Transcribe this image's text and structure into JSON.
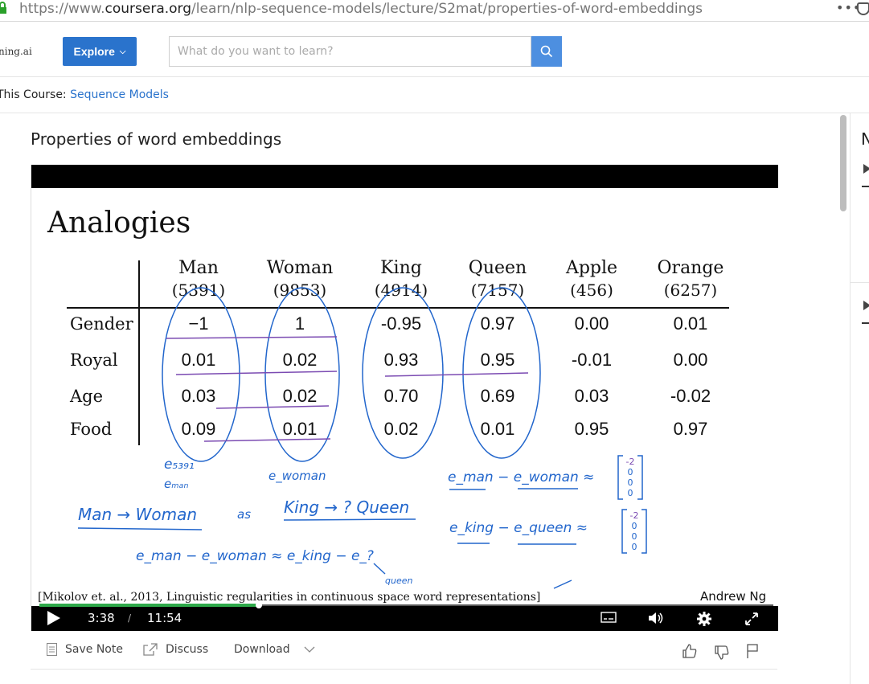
{
  "browser": {
    "url_prefix": "https://www.",
    "url_domain": "coursera.org",
    "url_path": "/learn/nlp-sequence-models/lecture/S2mat/properties-of-word-embeddings",
    "menu_icon": "ellipsis-icon"
  },
  "header": {
    "brand": "ning.ai",
    "explore_label": "Explore",
    "search_placeholder": "What do you want to learn?"
  },
  "course_bar": {
    "prefix": "This Course: ",
    "course_name": "Sequence Models"
  },
  "lecture": {
    "title": "Properties of word embeddings"
  },
  "slide": {
    "heading": "Analogies",
    "columns": [
      {
        "word": "Man",
        "index": "(5391)"
      },
      {
        "word": "Woman",
        "index": "(9853)"
      },
      {
        "word": "King",
        "index": "(4914)"
      },
      {
        "word": "Queen",
        "index": "(7157)"
      },
      {
        "word": "Apple",
        "index": "(456)"
      },
      {
        "word": "Orange",
        "index": "(6257)"
      }
    ],
    "rows": [
      {
        "feature": "Gender",
        "values": [
          "−1",
          "1",
          "-0.95",
          "0.97",
          "0.00",
          "0.01"
        ]
      },
      {
        "feature": "Royal",
        "values": [
          "0.01",
          "0.02",
          "0.93",
          "0.95",
          "-0.01",
          "0.00"
        ]
      },
      {
        "feature": "Age",
        "values": [
          "0.03",
          "0.02",
          "0.70",
          "0.69",
          "0.03",
          "-0.02"
        ]
      },
      {
        "feature": "Food",
        "values": [
          "0.09",
          "0.01",
          "0.02",
          "0.01",
          "0.95",
          "0.97"
        ]
      }
    ],
    "handwriting": {
      "e5391": "e₅₃₉₁",
      "eman": "eₘₐₙ",
      "ewoman": "e_woman",
      "analogy1": "Man → Woman",
      "as": "as",
      "analogy2": "King → ? Queen",
      "diff1": "e_man − e_woman ≈",
      "diff2": "e_king − e_queen ≈",
      "vec1": [
        "-2",
        "0",
        "0",
        "0"
      ],
      "vec2": [
        "-2",
        "0",
        "0",
        "0"
      ],
      "eq": "e_man − e_woman ≈ e_king − e_?",
      "queen_note": "queen"
    },
    "citation": "[Mikolov et. al., 2013, Linguistic regularities in continuous space word representations]",
    "author": "Andrew Ng"
  },
  "player": {
    "current_time": "3:38",
    "separator": "/",
    "duration": "11:54",
    "progress_fraction": 0.305
  },
  "actions": {
    "save_note": "Save Note",
    "discuss": "Discuss",
    "download": "Download"
  },
  "sidebar": {
    "letter": "N"
  },
  "colors": {
    "explore_bg": "#2a73cc",
    "search_btn_bg": "#4d8fe0",
    "link": "#2a73cc",
    "progress": "#2ea94a",
    "ink_blue": "#2266cc",
    "ink_purple": "#7b4bb2"
  }
}
